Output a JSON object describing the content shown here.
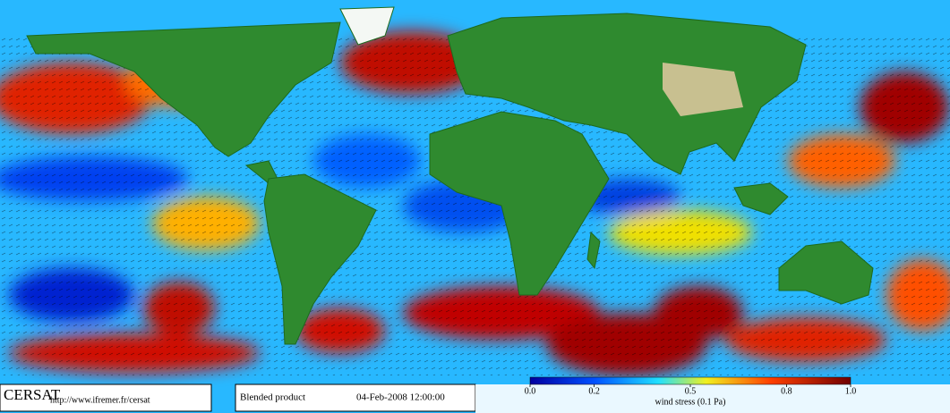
{
  "footer": {
    "logo": "CERSAT",
    "url": "http://www.ifremer.fr/cersat",
    "product": "Blended product",
    "date": "04-Feb-2008 12:00:00"
  },
  "colorbar": {
    "label": "wind stress (0.1 Pa)",
    "lim": [
      0,
      1
    ],
    "ticks": [
      {
        "value": 0,
        "label": "0.0"
      },
      0.2,
      0.5,
      0.8,
      {
        "value": 1,
        "label": "1.0"
      }
    ]
  }
}
